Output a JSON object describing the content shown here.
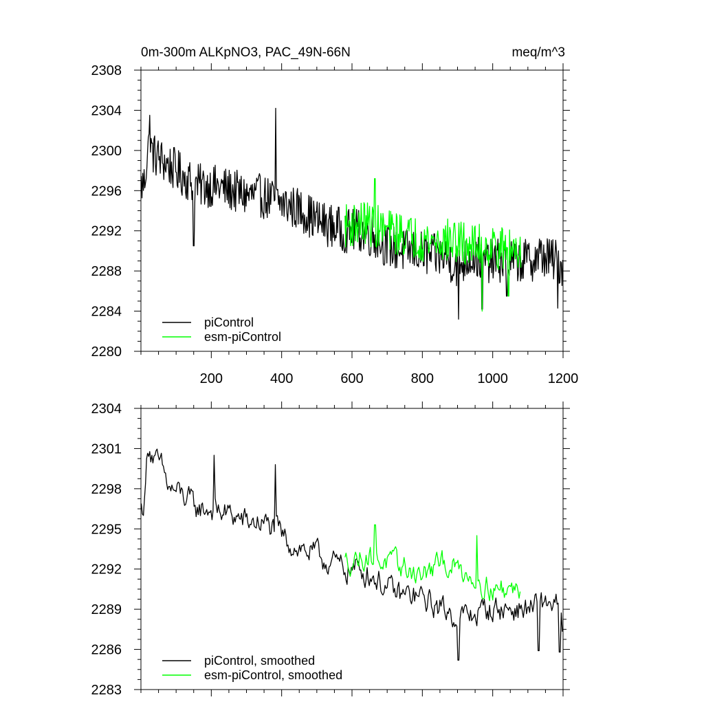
{
  "chart_data": [
    {
      "type": "line",
      "title_left": "0m-300m ALKpNO3, PAC_49N-66N",
      "title_right": "meq/m^3",
      "xlim": [
        0,
        1200
      ],
      "ylim": [
        2280,
        2308
      ],
      "x_ticks": [
        200,
        400,
        600,
        800,
        1000,
        1200
      ],
      "y_ticks": [
        2280,
        2284,
        2288,
        2292,
        2296,
        2300,
        2304,
        2308
      ],
      "y_tick_labels": [
        "2280",
        "2284",
        "2288",
        "2292",
        "2296",
        "2300",
        "2304",
        "2308"
      ],
      "x_tick_labels": [
        "200",
        "400",
        "600",
        "800",
        "1000",
        "1200"
      ],
      "legend": [
        "piControl",
        "esm-piControl"
      ],
      "series": [
        {
          "name": "piControl",
          "color": "#000000",
          "x_range": [
            1,
            1200
          ],
          "anchors": [
            [
              1,
              2296.5
            ],
            [
              10,
              2296.8
            ],
            [
              20,
              2300.5
            ],
            [
              40,
              2299.5
            ],
            [
              80,
              2298.5
            ],
            [
              120,
              2297.5
            ],
            [
              160,
              2296.5
            ],
            [
              200,
              2296.5
            ],
            [
              260,
              2296
            ],
            [
              300,
              2295.5
            ],
            [
              340,
              2295.5
            ],
            [
              380,
              2295
            ],
            [
              420,
              2294.5
            ],
            [
              460,
              2294
            ],
            [
              500,
              2293
            ],
            [
              540,
              2292.5
            ],
            [
              580,
              2292
            ],
            [
              620,
              2292
            ],
            [
              660,
              2291.5
            ],
            [
              700,
              2290.5
            ],
            [
              740,
              2290
            ],
            [
              780,
              2290
            ],
            [
              820,
              2289.5
            ],
            [
              860,
              2289.5
            ],
            [
              900,
              2288.5
            ],
            [
              940,
              2289.5
            ],
            [
              980,
              2289
            ],
            [
              1020,
              2289
            ],
            [
              1060,
              2289
            ],
            [
              1100,
              2289
            ],
            [
              1140,
              2289.5
            ],
            [
              1180,
              2289
            ],
            [
              1200,
              2288.5
            ]
          ],
          "noise": 2.2,
          "spikes": [
            [
              383,
              2304.2
            ],
            [
              150,
              2290.5
            ],
            [
              903,
              2283.2
            ],
            [
              970,
              2284.2
            ],
            [
              1040,
              2285.5
            ],
            [
              25,
              2303.5
            ],
            [
              1185,
              2284.3
            ]
          ]
        },
        {
          "name": "esm-piControl",
          "color": "#00ff00",
          "x_range": [
            580,
            1080
          ],
          "anchors": [
            [
              580,
              2292.5
            ],
            [
              640,
              2292.8
            ],
            [
              700,
              2292
            ],
            [
              760,
              2291.5
            ],
            [
              820,
              2291
            ],
            [
              880,
              2291
            ],
            [
              940,
              2290.5
            ],
            [
              1000,
              2290.5
            ],
            [
              1040,
              2290
            ],
            [
              1080,
              2290.5
            ]
          ],
          "noise": 2.2,
          "spikes": [
            [
              665,
              2297.2
            ],
            [
              970,
              2284
            ],
            [
              1045,
              2285.5
            ]
          ]
        }
      ]
    },
    {
      "type": "line",
      "xlim": [
        0,
        1200
      ],
      "ylim": [
        2283,
        2304
      ],
      "x_ticks": [
        200,
        400,
        600,
        800,
        1000,
        1200
      ],
      "y_ticks": [
        2283,
        2286,
        2289,
        2292,
        2295,
        2298,
        2301,
        2304
      ],
      "y_tick_labels": [
        "2283",
        "2286",
        "2289",
        "2292",
        "2295",
        "2298",
        "2301",
        "2304"
      ],
      "legend": [
        "piControl, smoothed",
        "esm-piControl, smoothed"
      ],
      "series": [
        {
          "name": "piControl, smoothed",
          "color": "#000000",
          "x_range": [
            1,
            1200
          ],
          "anchors": [
            [
              1,
              2296.5
            ],
            [
              10,
              2297
            ],
            [
              20,
              2301.5
            ],
            [
              40,
              2300
            ],
            [
              60,
              2299.5
            ],
            [
              80,
              2298
            ],
            [
              120,
              2297.5
            ],
            [
              160,
              2296.5
            ],
            [
              200,
              2296.5
            ],
            [
              260,
              2296
            ],
            [
              300,
              2295.5
            ],
            [
              340,
              2295.5
            ],
            [
              380,
              2295
            ],
            [
              420,
              2294
            ],
            [
              460,
              2293.5
            ],
            [
              500,
              2293
            ],
            [
              540,
              2292.5
            ],
            [
              580,
              2292
            ],
            [
              620,
              2292
            ],
            [
              660,
              2291.5
            ],
            [
              700,
              2290.5
            ],
            [
              740,
              2290
            ],
            [
              780,
              2290
            ],
            [
              820,
              2289.5
            ],
            [
              860,
              2289
            ],
            [
              900,
              2288.5
            ],
            [
              940,
              2288.5
            ],
            [
              980,
              2289
            ],
            [
              1020,
              2289
            ],
            [
              1060,
              2289
            ],
            [
              1100,
              2289
            ],
            [
              1140,
              2289.5
            ],
            [
              1180,
              2289.5
            ],
            [
              1200,
              2287.5
            ]
          ],
          "noise": 1.3,
          "spikes": [
            [
              382,
              2299.8
            ],
            [
              208,
              2300.5
            ],
            [
              902,
              2285.2
            ],
            [
              1130,
              2285.9
            ],
            [
              1190,
              2285.8
            ]
          ]
        },
        {
          "name": "esm-piControl, smoothed",
          "color": "#00ff00",
          "x_range": [
            580,
            1080
          ],
          "anchors": [
            [
              580,
              2292.5
            ],
            [
              640,
              2293
            ],
            [
              700,
              2292.5
            ],
            [
              760,
              2292
            ],
            [
              800,
              2291.5
            ],
            [
              860,
              2292.5
            ],
            [
              900,
              2292
            ],
            [
              940,
              2291.5
            ],
            [
              1000,
              2290.5
            ],
            [
              1040,
              2290.5
            ],
            [
              1080,
              2290.5
            ]
          ],
          "noise": 1.2,
          "spikes": [
            [
              665,
              2295.3
            ],
            [
              955,
              2294.5
            ]
          ]
        }
      ]
    }
  ]
}
